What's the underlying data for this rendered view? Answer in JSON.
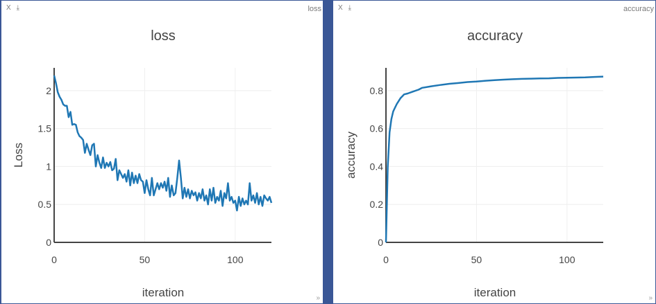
{
  "panes": [
    {
      "controls": {
        "close": "X",
        "download": "⤓"
      },
      "label": "loss",
      "resize": "»"
    },
    {
      "controls": {
        "close": "X",
        "download": "⤓"
      },
      "label": "accuracy",
      "resize": "»"
    }
  ],
  "colors": {
    "series": "#1f77b4",
    "frame": "#3a5796"
  },
  "chart_data": [
    {
      "type": "line",
      "title": "loss",
      "xlabel": "iteration",
      "ylabel": "Loss",
      "xlim": [
        0,
        120
      ],
      "ylim": [
        0,
        2.3
      ],
      "xticks": [
        0,
        50,
        100
      ],
      "xtick_labels": [
        "0",
        "50",
        "100"
      ],
      "yticks": [
        0,
        0.5,
        1,
        1.5,
        2
      ],
      "ytick_labels": [
        "0",
        "0.5",
        "1",
        "1.5",
        "2"
      ],
      "grid": true,
      "series": [
        {
          "x": [
            0,
            1,
            2,
            3,
            4,
            5,
            6,
            7,
            8,
            9,
            10,
            11,
            12,
            13,
            14,
            15,
            16,
            17,
            18,
            19,
            20,
            21,
            22,
            23,
            24,
            25,
            26,
            27,
            28,
            29,
            30,
            31,
            32,
            33,
            34,
            35,
            36,
            37,
            38,
            39,
            40,
            41,
            42,
            43,
            44,
            45,
            46,
            47,
            48,
            49,
            50,
            51,
            52,
            53,
            54,
            55,
            56,
            57,
            58,
            59,
            60,
            61,
            62,
            63,
            64,
            65,
            66,
            67,
            68,
            69,
            70,
            71,
            72,
            73,
            74,
            75,
            76,
            77,
            78,
            79,
            80,
            81,
            82,
            83,
            84,
            85,
            86,
            87,
            88,
            89,
            90,
            91,
            92,
            93,
            94,
            95,
            96,
            97,
            98,
            99,
            100,
            101,
            102,
            103,
            104,
            105,
            106,
            107,
            108,
            109,
            110,
            111,
            112,
            113,
            114,
            115,
            116,
            117,
            118,
            119,
            120
          ],
          "values": [
            2.2,
            2.1,
            1.98,
            1.92,
            1.88,
            1.82,
            1.8,
            1.8,
            1.65,
            1.72,
            1.55,
            1.56,
            1.55,
            1.45,
            1.4,
            1.38,
            1.35,
            1.18,
            1.3,
            1.22,
            1.15,
            1.28,
            1.3,
            1.0,
            1.15,
            1.05,
            0.98,
            1.12,
            0.98,
            1.05,
            1.0,
            1.06,
            0.95,
            0.97,
            1.1,
            0.82,
            0.95,
            0.9,
            0.85,
            0.9,
            0.8,
            0.95,
            0.75,
            0.92,
            0.78,
            0.88,
            0.78,
            0.9,
            0.82,
            0.8,
            0.65,
            0.82,
            0.7,
            0.62,
            0.85,
            0.62,
            0.7,
            0.78,
            0.7,
            0.78,
            0.72,
            0.8,
            0.68,
            0.85,
            0.6,
            0.75,
            0.62,
            0.65,
            0.85,
            1.08,
            0.85,
            0.58,
            0.72,
            0.6,
            0.7,
            0.58,
            0.68,
            0.62,
            0.66,
            0.55,
            0.65,
            0.58,
            0.7,
            0.55,
            0.62,
            0.5,
            0.7,
            0.55,
            0.72,
            0.52,
            0.6,
            0.55,
            0.68,
            0.48,
            0.65,
            0.58,
            0.78,
            0.55,
            0.6,
            0.52,
            0.55,
            0.42,
            0.6,
            0.48,
            0.58,
            0.5,
            0.55,
            0.5,
            0.78,
            0.55,
            0.62,
            0.52,
            0.65,
            0.5,
            0.6,
            0.48,
            0.62,
            0.58,
            0.55,
            0.6,
            0.52
          ]
        }
      ]
    },
    {
      "type": "line",
      "title": "accuracy",
      "xlabel": "iteration",
      "ylabel": "accuracy",
      "xlim": [
        0,
        120
      ],
      "ylim": [
        0,
        0.92
      ],
      "xticks": [
        0,
        50,
        100
      ],
      "xtick_labels": [
        "0",
        "50",
        "100"
      ],
      "yticks": [
        0,
        0.2,
        0.4,
        0.6,
        0.8
      ],
      "ytick_labels": [
        "0",
        "0.2",
        "0.4",
        "0.6",
        "0.8"
      ],
      "grid": true,
      "series": [
        {
          "x": [
            0,
            1,
            2,
            3,
            4,
            5,
            6,
            7,
            8,
            9,
            10,
            12,
            15,
            18,
            20,
            25,
            30,
            35,
            40,
            45,
            50,
            55,
            60,
            65,
            70,
            75,
            80,
            85,
            90,
            95,
            100,
            105,
            110,
            115,
            120
          ],
          "values": [
            0.0,
            0.4,
            0.58,
            0.65,
            0.69,
            0.71,
            0.73,
            0.745,
            0.76,
            0.77,
            0.78,
            0.785,
            0.795,
            0.805,
            0.815,
            0.823,
            0.83,
            0.836,
            0.84,
            0.845,
            0.848,
            0.852,
            0.855,
            0.858,
            0.86,
            0.862,
            0.863,
            0.864,
            0.865,
            0.867,
            0.868,
            0.869,
            0.87,
            0.872,
            0.874
          ]
        }
      ]
    }
  ]
}
